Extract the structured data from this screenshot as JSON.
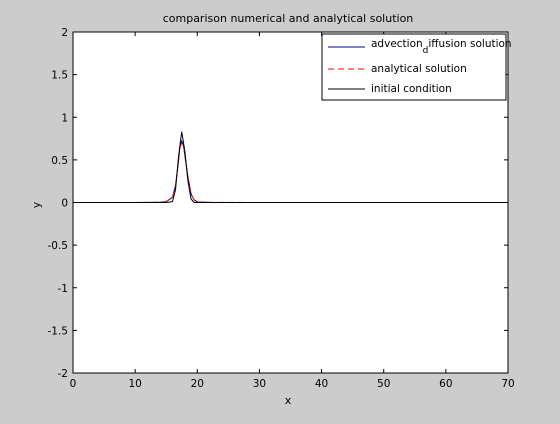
{
  "chart_data": {
    "type": "line",
    "title": "comparison numerical and analytical solution",
    "xlabel": "x",
    "ylabel": "y",
    "xlim": [
      0,
      70
    ],
    "ylim": [
      -2,
      2
    ],
    "xticks": [
      0,
      10,
      20,
      30,
      40,
      50,
      60,
      70
    ],
    "yticks": [
      -2,
      -1.5,
      -1,
      -0.5,
      0,
      0.5,
      1,
      1.5,
      2
    ],
    "grid": false,
    "legend_position": "top-right",
    "series": [
      {
        "name": "advection_diffusion solution",
        "color": "#00008b",
        "style": "solid",
        "x": [
          0,
          10,
          14,
          15,
          16,
          16.5,
          17,
          17.2,
          17.5,
          17.8,
          18.1,
          18.5,
          19,
          19.5,
          20,
          22,
          30,
          40,
          50,
          60,
          70
        ],
        "y": [
          0,
          0,
          0.003,
          0.01,
          0.06,
          0.2,
          0.5,
          0.65,
          0.72,
          0.66,
          0.5,
          0.3,
          0.1,
          0.03,
          0.008,
          0.002,
          0,
          0,
          0,
          0,
          0
        ]
      },
      {
        "name": "analytical solution",
        "color": "#ff0000",
        "style": "dashed",
        "x": [
          0,
          10,
          14,
          15,
          16,
          16.5,
          17,
          17.2,
          17.5,
          17.8,
          18.1,
          18.5,
          19,
          19.5,
          20,
          22,
          30,
          40,
          50,
          60,
          70
        ],
        "y": [
          0,
          0,
          0.003,
          0.01,
          0.06,
          0.2,
          0.5,
          0.64,
          0.7,
          0.65,
          0.5,
          0.3,
          0.1,
          0.03,
          0.008,
          0.002,
          0,
          0,
          0,
          0,
          0
        ]
      },
      {
        "name": "initial condition",
        "color": "#000000",
        "style": "solid",
        "x": [
          0,
          10,
          15,
          16,
          16.5,
          17,
          17.5,
          18,
          18.5,
          19,
          19.5,
          20,
          30,
          40,
          50,
          60,
          70
        ],
        "y": [
          0,
          0,
          0,
          0.01,
          0.15,
          0.55,
          0.83,
          0.6,
          0.25,
          0.04,
          0,
          0,
          0,
          0,
          0,
          0,
          0
        ]
      }
    ]
  },
  "legend_labels": {
    "series0_main": "advection",
    "series0_sub": "d",
    "series0_rest": "iffusion solution",
    "series1": "analytical solution",
    "series2": "initial condition"
  }
}
